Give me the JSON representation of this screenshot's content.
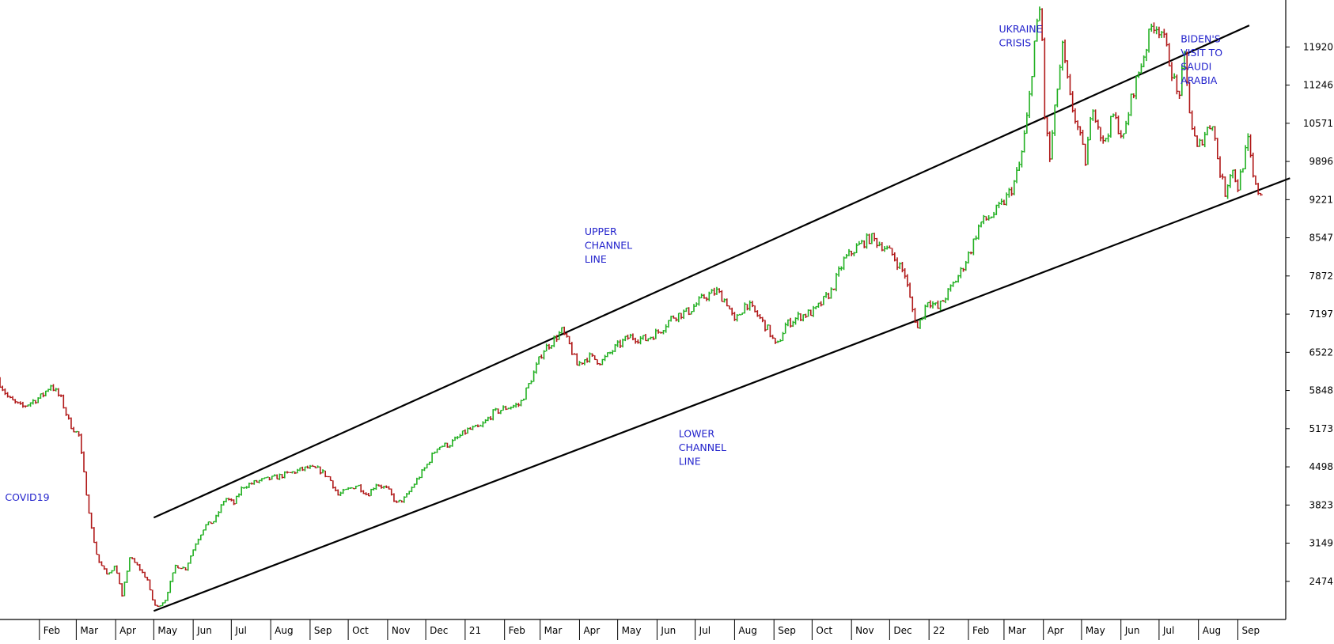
{
  "chart_data": {
    "type": "candlestick",
    "colors": {
      "up": "#22b022",
      "down": "#b01818",
      "channel": "#000000",
      "annotation": "#2222cc",
      "axis": "#000000",
      "background": "#ffffff"
    },
    "y_ticks": [
      2474,
      3149,
      3823,
      4498,
      5173,
      5848,
      6522,
      7197,
      7872,
      8547,
      9221,
      9896,
      10571,
      11246,
      11920
    ],
    "ylim": [
      1800,
      12750
    ],
    "x_range": [
      "2020-01-01",
      "2022-09-20"
    ],
    "x_ticks": [
      {
        "label": "Feb",
        "date": "2020-02-01"
      },
      {
        "label": "Mar",
        "date": "2020-03-01"
      },
      {
        "label": "Apr",
        "date": "2020-04-01"
      },
      {
        "label": "May",
        "date": "2020-05-01"
      },
      {
        "label": "Jun",
        "date": "2020-06-01"
      },
      {
        "label": "Jul",
        "date": "2020-07-01"
      },
      {
        "label": "Aug",
        "date": "2020-08-01"
      },
      {
        "label": "Sep",
        "date": "2020-09-01"
      },
      {
        "label": "Oct",
        "date": "2020-10-01"
      },
      {
        "label": "Nov",
        "date": "2020-11-01"
      },
      {
        "label": "Dec",
        "date": "2020-12-01"
      },
      {
        "label": "21",
        "date": "2021-01-01"
      },
      {
        "label": "Feb",
        "date": "2021-02-01"
      },
      {
        "label": "Mar",
        "date": "2021-03-01"
      },
      {
        "label": "Apr",
        "date": "2021-04-01"
      },
      {
        "label": "May",
        "date": "2021-05-01"
      },
      {
        "label": "Jun",
        "date": "2021-06-01"
      },
      {
        "label": "Jul",
        "date": "2021-07-01"
      },
      {
        "label": "Aug",
        "date": "2021-08-01"
      },
      {
        "label": "Sep",
        "date": "2021-09-01"
      },
      {
        "label": "Oct",
        "date": "2021-10-01"
      },
      {
        "label": "Nov",
        "date": "2021-11-01"
      },
      {
        "label": "Dec",
        "date": "2021-12-01"
      },
      {
        "label": "22",
        "date": "2022-01-01"
      },
      {
        "label": "Feb",
        "date": "2022-02-01"
      },
      {
        "label": "Mar",
        "date": "2022-03-01"
      },
      {
        "label": "Apr",
        "date": "2022-04-01"
      },
      {
        "label": "May",
        "date": "2022-05-01"
      },
      {
        "label": "Jun",
        "date": "2022-06-01"
      },
      {
        "label": "Jul",
        "date": "2022-07-01"
      },
      {
        "label": "Aug",
        "date": "2022-08-01"
      },
      {
        "label": "Sep",
        "date": "2022-09-01"
      }
    ],
    "price_path": [
      [
        "2020-01-01",
        6050
      ],
      [
        "2020-01-10",
        5700
      ],
      [
        "2020-01-20",
        5550
      ],
      [
        "2020-02-05",
        5750
      ],
      [
        "2020-02-12",
        5950
      ],
      [
        "2020-02-20",
        5700
      ],
      [
        "2020-02-27",
        5250
      ],
      [
        "2020-03-05",
        5050
      ],
      [
        "2020-03-10",
        4200
      ],
      [
        "2020-03-15",
        3400
      ],
      [
        "2020-03-20",
        2850
      ],
      [
        "2020-03-27",
        2600
      ],
      [
        "2020-04-03",
        2750
      ],
      [
        "2020-04-08",
        2200
      ],
      [
        "2020-04-14",
        2900
      ],
      [
        "2020-04-20",
        2750
      ],
      [
        "2020-04-28",
        2500
      ],
      [
        "2020-05-01",
        2200
      ],
      [
        "2020-05-05",
        2000
      ],
      [
        "2020-05-12",
        2150
      ],
      [
        "2020-05-20",
        2750
      ],
      [
        "2020-05-28",
        2700
      ],
      [
        "2020-06-05",
        3150
      ],
      [
        "2020-06-12",
        3450
      ],
      [
        "2020-06-20",
        3550
      ],
      [
        "2020-06-28",
        3950
      ],
      [
        "2020-07-05",
        3850
      ],
      [
        "2020-07-12",
        4150
      ],
      [
        "2020-07-25",
        4250
      ],
      [
        "2020-08-05",
        4300
      ],
      [
        "2020-08-20",
        4400
      ],
      [
        "2020-09-01",
        4480
      ],
      [
        "2020-09-10",
        4450
      ],
      [
        "2020-09-18",
        4300
      ],
      [
        "2020-09-25",
        4000
      ],
      [
        "2020-10-03",
        4100
      ],
      [
        "2020-10-10",
        4180
      ],
      [
        "2020-10-18",
        4000
      ],
      [
        "2020-10-25",
        4200
      ],
      [
        "2020-11-03",
        4100
      ],
      [
        "2020-11-10",
        3850
      ],
      [
        "2020-11-17",
        3950
      ],
      [
        "2020-11-24",
        4200
      ],
      [
        "2020-12-03",
        4500
      ],
      [
        "2020-12-12",
        4850
      ],
      [
        "2020-12-22",
        4900
      ],
      [
        "2021-01-05",
        5150
      ],
      [
        "2021-01-15",
        5200
      ],
      [
        "2021-01-25",
        5450
      ],
      [
        "2021-02-05",
        5550
      ],
      [
        "2021-02-15",
        5600
      ],
      [
        "2021-02-25",
        6100
      ],
      [
        "2021-03-05",
        6550
      ],
      [
        "2021-03-12",
        6700
      ],
      [
        "2021-03-20",
        6900
      ],
      [
        "2021-03-26",
        6650
      ],
      [
        "2021-04-01",
        6300
      ],
      [
        "2021-04-10",
        6450
      ],
      [
        "2021-04-20",
        6350
      ],
      [
        "2021-05-01",
        6600
      ],
      [
        "2021-05-12",
        6800
      ],
      [
        "2021-05-25",
        6750
      ],
      [
        "2021-06-05",
        6900
      ],
      [
        "2021-06-15",
        7150
      ],
      [
        "2021-06-28",
        7250
      ],
      [
        "2021-07-10",
        7500
      ],
      [
        "2021-07-20",
        7600
      ],
      [
        "2021-07-28",
        7400
      ],
      [
        "2021-08-03",
        7050
      ],
      [
        "2021-08-12",
        7400
      ],
      [
        "2021-08-22",
        7150
      ],
      [
        "2021-08-30",
        6900
      ],
      [
        "2021-09-05",
        6600
      ],
      [
        "2021-09-12",
        7000
      ],
      [
        "2021-09-22",
        7150
      ],
      [
        "2021-10-05",
        7250
      ],
      [
        "2021-10-18",
        7600
      ],
      [
        "2021-10-28",
        8150
      ],
      [
        "2021-11-08",
        8400
      ],
      [
        "2021-11-18",
        8550
      ],
      [
        "2021-11-28",
        8400
      ],
      [
        "2021-12-05",
        8250
      ],
      [
        "2021-12-15",
        7900
      ],
      [
        "2021-12-20",
        7350
      ],
      [
        "2021-12-25",
        6950
      ],
      [
        "2022-01-02",
        7450
      ],
      [
        "2022-01-10",
        7300
      ],
      [
        "2022-01-20",
        7650
      ],
      [
        "2022-01-28",
        7950
      ],
      [
        "2022-02-05",
        8350
      ],
      [
        "2022-02-12",
        8800
      ],
      [
        "2022-02-22",
        8950
      ],
      [
        "2022-03-02",
        9150
      ],
      [
        "2022-03-10",
        9450
      ],
      [
        "2022-03-16",
        9900
      ],
      [
        "2022-03-22",
        10800
      ],
      [
        "2022-03-27",
        12000
      ],
      [
        "2022-04-01",
        12700
      ],
      [
        "2022-04-04",
        10700
      ],
      [
        "2022-04-08",
        9950
      ],
      [
        "2022-04-14",
        11200
      ],
      [
        "2022-04-18",
        11900
      ],
      [
        "2022-04-24",
        11000
      ],
      [
        "2022-05-01",
        10400
      ],
      [
        "2022-05-06",
        9900
      ],
      [
        "2022-05-12",
        10900
      ],
      [
        "2022-05-20",
        10200
      ],
      [
        "2022-05-28",
        10700
      ],
      [
        "2022-06-05",
        10300
      ],
      [
        "2022-06-12",
        11100
      ],
      [
        "2022-06-20",
        11700
      ],
      [
        "2022-06-28",
        12350
      ],
      [
        "2022-07-05",
        12200
      ],
      [
        "2022-07-12",
        11600
      ],
      [
        "2022-07-18",
        11000
      ],
      [
        "2022-07-23",
        11700
      ],
      [
        "2022-07-28",
        10600
      ],
      [
        "2022-08-02",
        10100
      ],
      [
        "2022-08-08",
        10400
      ],
      [
        "2022-08-14",
        10600
      ],
      [
        "2022-08-19",
        9800
      ],
      [
        "2022-08-24",
        9350
      ],
      [
        "2022-08-29",
        9800
      ],
      [
        "2022-09-03",
        9450
      ],
      [
        "2022-09-07",
        9850
      ],
      [
        "2022-09-11",
        10250
      ],
      [
        "2022-09-16",
        9450
      ],
      [
        "2022-09-20",
        9350
      ]
    ],
    "channel_lines": [
      {
        "name": "UPPER CHANNEL LINE",
        "start": [
          "2020-05-01",
          3600
        ],
        "end": [
          "2022-09-10",
          12300
        ]
      },
      {
        "name": "LOWER CHANNEL LINE",
        "start": [
          "2020-05-01",
          1950
        ],
        "end": [
          "2022-10-12",
          9600
        ]
      }
    ],
    "annotations": [
      {
        "lines": [
          "COVID19"
        ],
        "date": "2020-01-05",
        "value": 3900
      },
      {
        "lines": [
          "UPPER",
          "CHANNEL",
          "LINE"
        ],
        "date": "2021-04-05",
        "value": 8600
      },
      {
        "lines": [
          "LOWER",
          "CHANNEL",
          "LINE"
        ],
        "date": "2021-06-18",
        "value": 5020
      },
      {
        "lines": [
          "UKRAINE",
          "CRISIS"
        ],
        "date": "2022-02-25",
        "value": 12180
      },
      {
        "lines": [
          "BIDEN'S",
          "VISIT TO",
          "SAUDI",
          "ARABIA"
        ],
        "date": "2022-07-18",
        "value": 12000
      }
    ]
  }
}
